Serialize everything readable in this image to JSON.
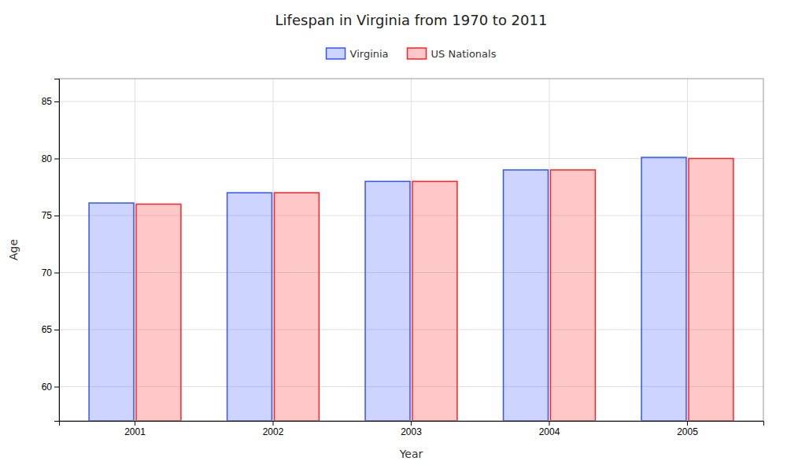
{
  "chart_data": {
    "type": "bar",
    "title": "Lifespan in Virginia from 1970 to 2011",
    "x_label": "Year",
    "y_label": "Age",
    "categories": [
      "2001",
      "2002",
      "2003",
      "2004",
      "2005"
    ],
    "series": [
      {
        "name": "Virginia",
        "color": "#3355FF",
        "values": [
          76.1,
          77.0,
          78.0,
          79.0,
          80.1
        ]
      },
      {
        "name": "US Nationals",
        "color": "#FF2222",
        "values": [
          76.0,
          77.0,
          78.0,
          79.0,
          80.0
        ]
      }
    ],
    "ylim": [
      57,
      87
    ],
    "yticks": [
      60,
      65,
      70,
      75,
      80,
      85
    ],
    "grid": true,
    "legend": "top"
  }
}
